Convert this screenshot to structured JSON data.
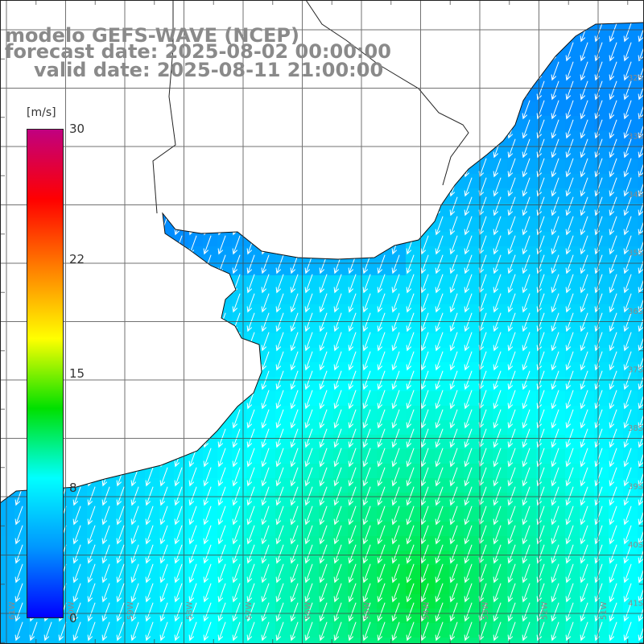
{
  "header": {
    "line1": "modelo GEFS-WAVE (NCEP)",
    "line2": "forecast date: 2025-08-02 00:00:00",
    "line3": "valid date: 2025-08-11 21:00:00"
  },
  "colorbar": {
    "unit": "[m/s]",
    "min": 0,
    "max": 30,
    "ticks": [
      "30",
      "22",
      "15",
      "8",
      "0"
    ],
    "tick_values": [
      30,
      22,
      15,
      8,
      0
    ],
    "colors": [
      "#0000ff",
      "#0096ff",
      "#00ffff",
      "#00e000",
      "#ffff00",
      "#ff8000",
      "#ff0000",
      "#c00080"
    ]
  },
  "map": {
    "latitude_labels": [
      "32S",
      "33S",
      "34S",
      "35S",
      "36S",
      "37S",
      "38S",
      "39S",
      "40S",
      "41S"
    ],
    "longitude_labels": [
      "61W",
      "60W",
      "59W",
      "58W",
      "57W",
      "56W",
      "55W",
      "54W",
      "53W",
      "52W",
      "51W"
    ],
    "land_color": "#ffffff",
    "grid_color": "#444444",
    "arrow_color": "#ffffff",
    "wind_direction_deg": 200,
    "wind_speed_range_mps": [
      4,
      12
    ]
  }
}
